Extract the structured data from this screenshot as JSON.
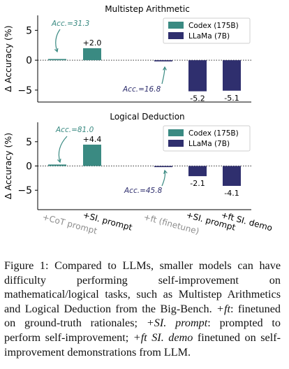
{
  "figure": {
    "panels": [
      {
        "title": "Multistep Arithmetic",
        "acc_codex": "Acc.=31.3",
        "acc_llama": "Acc.=16.8"
      },
      {
        "title": "Logical Deduction",
        "acc_codex": "Acc.=81.0",
        "acc_llama": "Acc.=45.8"
      }
    ],
    "x_tick_labels": [
      "+CoT prompt",
      "+SI. prompt",
      "+ft (finetune)",
      "+SI. prompt",
      "+ft SI. demo"
    ],
    "ylabel": "Δ Accuracy (%)",
    "legend": [
      "Codex (175B)",
      "LLaMa (7B)"
    ]
  },
  "chart_data": [
    {
      "type": "bar",
      "title": "Multistep Arithmetic",
      "ylabel": "Δ Accuracy (%)",
      "ylim": [
        -7,
        7.5
      ],
      "yticks": [
        -5,
        0,
        5
      ],
      "series": [
        {
          "name": "Codex (175B)",
          "color": "#3a8a82",
          "positions": [
            0,
            1
          ],
          "values": [
            0.2,
            2.0
          ],
          "labels": [
            "",
            "+2.0"
          ]
        },
        {
          "name": "LLaMa (7B)",
          "color": "#2f2f6e",
          "positions": [
            2,
            3,
            4
          ],
          "values": [
            -0.2,
            -5.2,
            -5.1
          ],
          "labels": [
            "",
            "-5.2",
            "-5.1"
          ]
        }
      ],
      "annotations": [
        "Acc.=31.3",
        "Acc.=16.8"
      ],
      "legend_position": "top-right",
      "zero_line": "dotted"
    },
    {
      "type": "bar",
      "title": "Logical Deduction",
      "ylabel": "Δ Accuracy (%)",
      "ylim": [
        -9,
        9
      ],
      "yticks": [
        -5,
        0,
        5
      ],
      "series": [
        {
          "name": "Codex (175B)",
          "color": "#3a8a82",
          "positions": [
            0,
            1
          ],
          "values": [
            0.3,
            4.4
          ],
          "labels": [
            "",
            "+4.4"
          ]
        },
        {
          "name": "LLaMa (7B)",
          "color": "#2f2f6e",
          "positions": [
            2,
            3,
            4
          ],
          "values": [
            -0.2,
            -2.1,
            -4.1
          ],
          "labels": [
            "",
            "-2.1",
            "-4.1"
          ]
        }
      ],
      "annotations": [
        "Acc.=81.0",
        "Acc.=45.8"
      ],
      "legend_position": "top-right",
      "zero_line": "dotted"
    }
  ],
  "caption": {
    "label": "Figure 1:",
    "text_1": " Compared to LLMs, smaller models can have difficulty performing self-improvement on mathematical/logical tasks, such as Multistep Arithmetics and Logical Deduction from the Big-Bench. ",
    "ft": "+ft",
    "text_2": ": finetuned on ground-truth rationales; ",
    "si_prompt": "+SI. prompt",
    "text_3": ": prompted to perform self-improvement; ",
    "ft_si_demo": "+ft SI. demo",
    "text_4": " finetuned on self-improvement demonstrations from LLM."
  }
}
